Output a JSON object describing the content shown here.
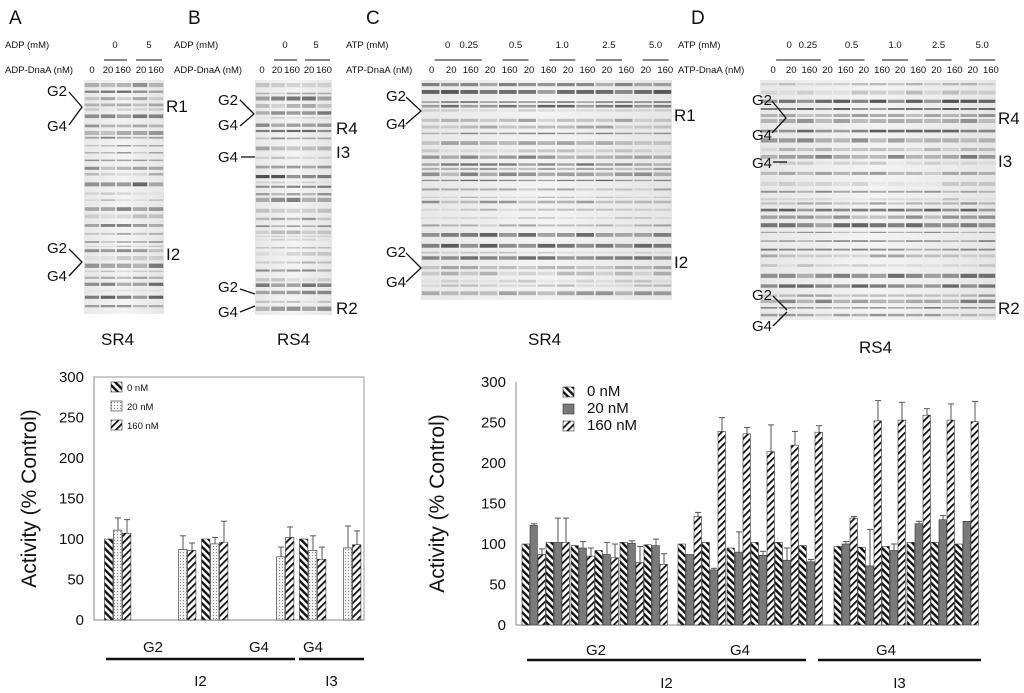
{
  "figure": {
    "panel_letters": [
      "A",
      "B",
      "C",
      "D"
    ],
    "gel_A": {
      "cond_label": "ADP (mM)",
      "cond_values": [
        "0",
        "5"
      ],
      "conc_label": "ADP-DnaA (nM)",
      "conc_values": [
        "0",
        "20",
        "160",
        "20",
        "160"
      ],
      "left_labels": [
        "G2",
        "G4",
        "G2",
        "G4"
      ],
      "right_labels": [
        "R1",
        "I2"
      ],
      "caption": "SR4"
    },
    "gel_B": {
      "cond_label": "ADP (mM)",
      "cond_values": [
        "0",
        "5"
      ],
      "conc_label": "ADP-DnaA (nM)",
      "conc_values": [
        "0",
        "20",
        "160",
        "20",
        "160"
      ],
      "left_labels": [
        "G2",
        "G4",
        "G4",
        "G2",
        "G4"
      ],
      "right_labels": [
        "R4",
        "I3",
        "R2"
      ],
      "caption": "RS4"
    },
    "gel_C": {
      "cond_label": "ATP (mM)",
      "cond_values": [
        "0",
        "0.25",
        "0.5",
        "1.0",
        "2.5",
        "5.0"
      ],
      "conc_label": "ATP-DnaA (nM)",
      "conc_values": [
        "0",
        "20",
        "160",
        "20",
        "160",
        "20",
        "160",
        "20",
        "160",
        "20",
        "160",
        "20",
        "160"
      ],
      "left_labels": [
        "G2",
        "G4",
        "G2",
        "G4"
      ],
      "right_labels": [
        "R1",
        "I2"
      ],
      "caption": "SR4"
    },
    "gel_D": {
      "cond_label": "ATP (mM)",
      "cond_values": [
        "0",
        "0.25",
        "0.5",
        "1.0",
        "2.5",
        "5.0"
      ],
      "conc_label": "ATP-DnaA (nM)",
      "conc_values": [
        "0",
        "20",
        "160",
        "20",
        "160",
        "20",
        "160",
        "20",
        "160",
        "20",
        "160",
        "20",
        "160"
      ],
      "left_labels": [
        "G2",
        "G4",
        "G4",
        "G2",
        "G4"
      ],
      "right_labels": [
        "R4",
        "I3",
        "R2"
      ],
      "caption": "RS4"
    }
  },
  "chart_data": [
    {
      "type": "bar",
      "ylabel": "Activity (% Control)",
      "ylim": [
        0,
        300
      ],
      "yticks": [
        0,
        50,
        100,
        150,
        200,
        250,
        300
      ],
      "legend": [
        "0 nM",
        "20 nM",
        "160 nM"
      ],
      "legend_position": "top-left",
      "group_labels": [
        "G2",
        "G4",
        "G4"
      ],
      "site_labels": [
        "I2",
        "I3"
      ],
      "series": [
        {
          "name": "0 nM",
          "values": [
            100,
            null,
            100,
            null,
            100,
            null
          ],
          "errors": [
            0,
            0,
            0,
            0,
            0,
            0
          ]
        },
        {
          "name": "20 nM",
          "values": [
            111,
            87,
            94,
            78,
            86,
            89
          ],
          "errors": [
            15,
            17,
            8,
            12,
            18,
            27
          ]
        },
        {
          "name": "160 nM",
          "values": [
            107,
            86,
            96,
            102,
            75,
            93
          ],
          "errors": [
            17,
            9,
            26,
            13,
            15,
            17
          ]
        }
      ]
    },
    {
      "type": "bar",
      "ylabel": "Activity (% Control)",
      "ylim": [
        0,
        300
      ],
      "yticks": [
        0,
        50,
        100,
        150,
        200,
        250,
        300
      ],
      "legend": [
        "0 nM",
        "20 nM",
        "160 nM"
      ],
      "legend_position": "top-left",
      "group_labels": [
        "G2",
        "G4",
        "G4"
      ],
      "site_labels": [
        "I2",
        "I3"
      ],
      "series": [
        {
          "name": "0 nM",
          "values": [
            100,
            102,
            98,
            92,
            102,
            99,
            100,
            102,
            95,
            102,
            102,
            98,
            97,
            96,
            97,
            102,
            102,
            100
          ],
          "errors": [
            0,
            0,
            0,
            0,
            0,
            0,
            0,
            0,
            0,
            0,
            0,
            0,
            0,
            0,
            0,
            0,
            0,
            0
          ]
        },
        {
          "name": "20 nM",
          "values": [
            123,
            102,
            95,
            87,
            101,
            98,
            87,
            68,
            90,
            86,
            80,
            78,
            100,
            73,
            92,
            125,
            130,
            128
          ],
          "errors": [
            2,
            30,
            8,
            15,
            3,
            8,
            0,
            2,
            25,
            5,
            15,
            3,
            3,
            45,
            8,
            3,
            5,
            0
          ]
        },
        {
          "name": "160 nM",
          "values": [
            87,
            102,
            85,
            83,
            77,
            75,
            134,
            239,
            236,
            214,
            222,
            238,
            132,
            252,
            253,
            259,
            253,
            251
          ],
          "errors": [
            7,
            30,
            10,
            17,
            20,
            13,
            5,
            17,
            8,
            33,
            17,
            8,
            2,
            25,
            22,
            8,
            20,
            25
          ]
        }
      ]
    }
  ]
}
